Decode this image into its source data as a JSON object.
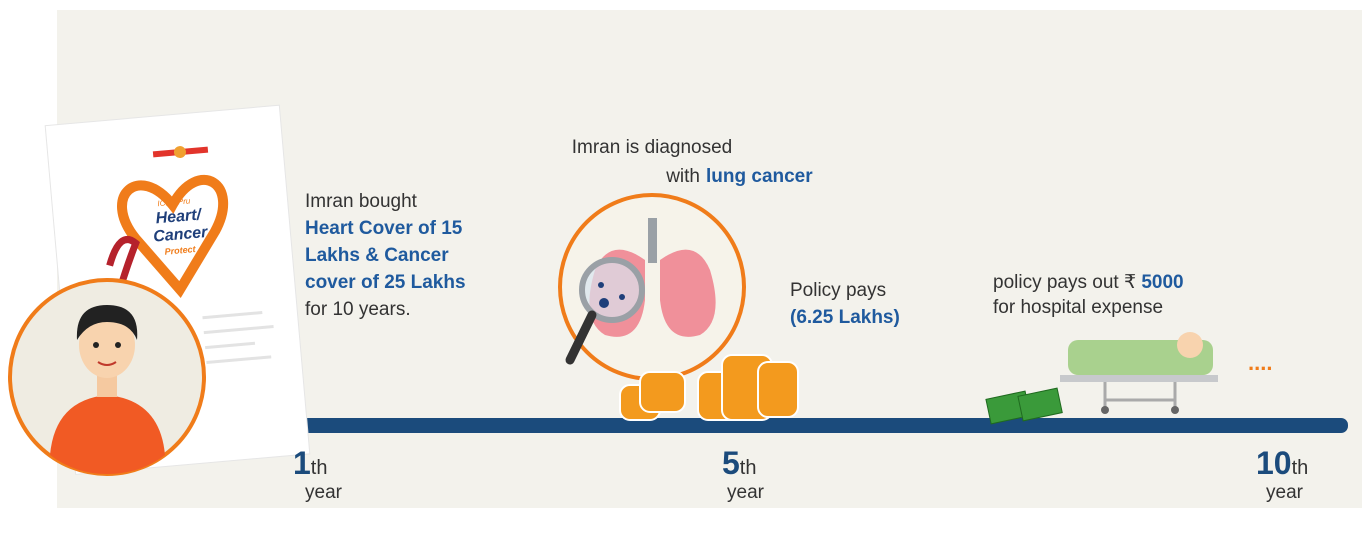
{
  "policy_card": {
    "brand": "ICICI Pru",
    "title_lines": [
      "Heart/",
      "Cancer",
      "Protect"
    ]
  },
  "purchase": {
    "intro": "Imran bought",
    "highlight_lines": [
      "Heart Cover of 15",
      "Lakhs & Cancer",
      "cover of 25 Lakhs"
    ],
    "outro": "for 10 years."
  },
  "diagnosis": {
    "line1": "Imran is diagnosed",
    "line2_prefix": "with",
    "highlight": "lung cancer",
    "payout_label": "Policy pays",
    "payout_amount": "(6.25 Lakhs)"
  },
  "hospital": {
    "line1_prefix": "policy pays out",
    "currency": "₹",
    "amount": "5000",
    "line2": "for hospital expense",
    "continuation": "...."
  },
  "timeline": [
    {
      "number": "1",
      "suffix": "th",
      "unit": "year"
    },
    {
      "number": "5",
      "suffix": "th",
      "unit": "year"
    },
    {
      "number": "10",
      "suffix": "th",
      "unit": "year"
    }
  ]
}
